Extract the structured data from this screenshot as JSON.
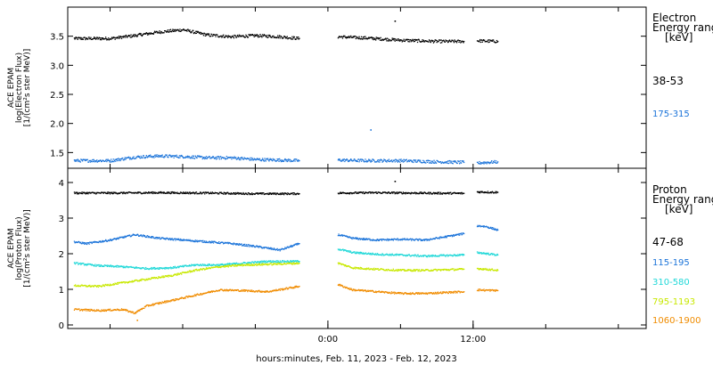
{
  "xlabel": "hours:minutes, Feb. 11, 2023 - Feb. 12, 2023",
  "x_ticks": [
    {
      "hours": 24,
      "label": "0:00"
    },
    {
      "hours": 36,
      "label": "12:00"
    }
  ],
  "x_minor_ticks_hours": [
    6,
    12,
    18,
    24,
    30,
    36,
    42,
    48
  ],
  "x_range_hours": [
    2.5,
    50.3
  ],
  "colors": {
    "black": "#000000",
    "blue": "#1a73d9",
    "cyan": "#20d8d8",
    "yellow": "#c8e800",
    "orange": "#f08c00",
    "frame": "#000000"
  },
  "chart_data": [
    {
      "type": "scatter",
      "panel": "top",
      "instrument": "ACE EPAM",
      "ylabel": [
        "ACE EPAM",
        "log(Electron Flux)",
        "[1/(cm²s ster MeV)]"
      ],
      "ylim": [
        1.23,
        4.0
      ],
      "y_ticks": [
        1.5,
        2.0,
        2.5,
        3.0,
        3.5
      ],
      "y_ticks_display": [
        "1.5",
        "2.0",
        "2.5",
        "3.0",
        "3.5"
      ],
      "legend_title": [
        "Electron",
        "Energy range",
        "[keV]"
      ],
      "series": [
        {
          "name": "38-53",
          "color": "#000000",
          "segments": [
            {
              "x": [
                3.0,
                6,
                8,
                10,
                12,
                14,
                16,
                18,
                20,
                21.6
              ],
              "y": [
                3.47,
                3.47,
                3.52,
                3.58,
                3.62,
                3.53,
                3.5,
                3.52,
                3.5,
                3.47
              ]
            },
            {
              "x": [
                24.8,
                27,
                30,
                33,
                35.2
              ],
              "y": [
                3.5,
                3.48,
                3.44,
                3.42,
                3.42
              ]
            },
            {
              "x": [
                36.3,
                38.0
              ],
              "y": [
                3.43,
                3.42
              ]
            }
          ],
          "outliers": [
            {
              "x": 29.5,
              "y": 3.77
            }
          ]
        },
        {
          "name": "175-315",
          "color": "#1a73d9",
          "segments": [
            {
              "x": [
                3.0,
                6,
                8,
                10,
                12,
                14,
                16,
                18,
                20,
                21.6
              ],
              "y": [
                1.37,
                1.37,
                1.43,
                1.45,
                1.44,
                1.42,
                1.42,
                1.39,
                1.38,
                1.37
              ]
            },
            {
              "x": [
                24.8,
                27,
                30,
                33,
                35.2
              ],
              "y": [
                1.38,
                1.37,
                1.37,
                1.35,
                1.34
              ]
            },
            {
              "x": [
                36.3,
                38.0
              ],
              "y": [
                1.33,
                1.35
              ]
            }
          ],
          "outliers": [
            {
              "x": 27.5,
              "y": 1.9
            }
          ]
        }
      ]
    },
    {
      "type": "scatter",
      "panel": "bottom",
      "instrument": "ACE EPAM",
      "ylabel": [
        "ACE EPAM",
        "log(Proton Flux)",
        "[1/(cm²s ster MeV)]"
      ],
      "ylim": [
        -0.1,
        4.4
      ],
      "y_ticks": [
        0,
        1,
        2,
        3,
        4
      ],
      "y_ticks_display": [
        "0",
        "1",
        "2",
        "3",
        "4"
      ],
      "legend_title": [
        "Proton",
        "Energy range",
        "[keV]"
      ],
      "series": [
        {
          "name": "47-68",
          "color": "#000000",
          "segments": [
            {
              "x": [
                3.0,
                6,
                10,
                14,
                18,
                21.6
              ],
              "y": [
                3.72,
                3.72,
                3.73,
                3.72,
                3.7,
                3.7
              ]
            },
            {
              "x": [
                24.8,
                28,
                31,
                35.2
              ],
              "y": [
                3.72,
                3.73,
                3.72,
                3.71
              ]
            },
            {
              "x": [
                36.3,
                38.0
              ],
              "y": [
                3.75,
                3.74
              ]
            }
          ],
          "outliers": [
            {
              "x": 29.5,
              "y": 4.05
            }
          ]
        },
        {
          "name": "115-195",
          "color": "#1a73d9",
          "segments": [
            {
              "x": [
                3.0,
                4,
                6,
                8,
                10,
                12,
                14,
                16,
                18,
                20,
                21.6
              ],
              "y": [
                2.35,
                2.3,
                2.4,
                2.55,
                2.45,
                2.4,
                2.35,
                2.3,
                2.22,
                2.12,
                2.3
              ]
            },
            {
              "x": [
                24.8,
                26,
                28,
                30,
                32,
                33.5,
                35.2
              ],
              "y": [
                2.55,
                2.45,
                2.4,
                2.42,
                2.4,
                2.48,
                2.58
              ]
            },
            {
              "x": [
                36.3,
                37,
                38.0
              ],
              "y": [
                2.8,
                2.78,
                2.68
              ]
            }
          ]
        },
        {
          "name": "310-580",
          "color": "#20d8d8",
          "segments": [
            {
              "x": [
                3.0,
                5,
                7,
                9,
                11,
                13,
                15,
                17,
                19,
                21.6
              ],
              "y": [
                1.75,
                1.68,
                1.65,
                1.6,
                1.62,
                1.7,
                1.7,
                1.75,
                1.8,
                1.8
              ]
            },
            {
              "x": [
                24.8,
                26,
                28,
                30,
                32,
                35.2
              ],
              "y": [
                2.15,
                2.05,
                2.0,
                1.98,
                1.95,
                1.98
              ]
            },
            {
              "x": [
                36.3,
                38.0
              ],
              "y": [
                2.05,
                1.98
              ]
            }
          ]
        },
        {
          "name": "795-1193",
          "color": "#c8e800",
          "segments": [
            {
              "x": [
                3.0,
                5,
                7,
                9,
                11,
                13,
                15,
                17,
                19,
                21.6
              ],
              "y": [
                1.12,
                1.1,
                1.2,
                1.3,
                1.4,
                1.55,
                1.65,
                1.7,
                1.72,
                1.75
              ]
            },
            {
              "x": [
                24.8,
                26,
                28,
                30,
                32,
                35.2
              ],
              "y": [
                1.75,
                1.62,
                1.58,
                1.55,
                1.55,
                1.58
              ]
            },
            {
              "x": [
                36.3,
                38.0
              ],
              "y": [
                1.6,
                1.55
              ]
            }
          ]
        },
        {
          "name": "1060-1900",
          "color": "#f08c00",
          "segments": [
            {
              "x": [
                3.0,
                5,
                7,
                8,
                9,
                11,
                13,
                15,
                17,
                19,
                21.6
              ],
              "y": [
                0.45,
                0.42,
                0.45,
                0.35,
                0.55,
                0.7,
                0.85,
                1.0,
                0.98,
                0.95,
                1.1
              ]
            },
            {
              "x": [
                24.8,
                26,
                28,
                30,
                32,
                35.2
              ],
              "y": [
                1.15,
                1.0,
                0.95,
                0.9,
                0.9,
                0.95
              ]
            },
            {
              "x": [
                36.3,
                38.0
              ],
              "y": [
                1.0,
                0.98
              ]
            }
          ],
          "outliers": [
            {
              "x": 8.2,
              "y": 0.15
            }
          ]
        }
      ]
    }
  ]
}
